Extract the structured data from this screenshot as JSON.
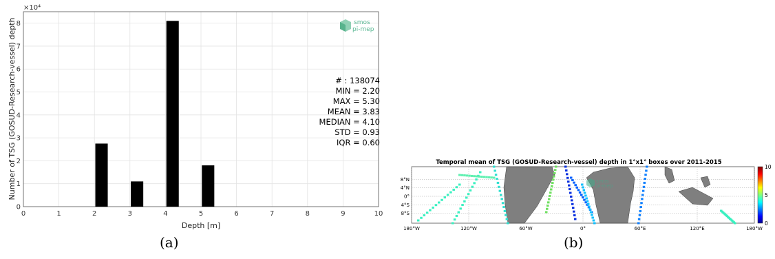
{
  "panel_a": {
    "logo": {
      "line1": "smos",
      "line2": "pi-mep",
      "color": "#3fae8a"
    },
    "stats": [
      "# : 138074",
      "MIN = 2.20",
      "MAX =  5.30",
      "MEAN = 3.83",
      "MEDIAN = 4.10",
      "STD = 0.93",
      "IQR = 0.60"
    ],
    "caption": "(a)"
  },
  "panel_b": {
    "caption": "(b)",
    "logo": {
      "line1": "smos",
      "line2": "pi-mep"
    }
  },
  "chart_data": [
    {
      "type": "bar",
      "xlabel": "Depth [m]",
      "ylabel": "Number of TSG (GOSUD-Research-vessel) depth",
      "y_multiplier_label": "×10⁴",
      "xlim": [
        0,
        10
      ],
      "ylim": [
        0,
        85000
      ],
      "x_ticks": [
        0,
        1,
        2,
        3,
        4,
        5,
        6,
        7,
        8,
        9,
        10
      ],
      "y_ticks": [
        0,
        10000,
        20000,
        30000,
        40000,
        50000,
        60000,
        70000,
        80000
      ],
      "y_tick_labels": [
        "0",
        "1",
        "2",
        "3",
        "4",
        "5",
        "6",
        "7",
        "8"
      ],
      "bar_width": 0.35,
      "bars": [
        {
          "x": 2.2,
          "value": 27500
        },
        {
          "x": 3.2,
          "value": 11000
        },
        {
          "x": 4.2,
          "value": 81000
        },
        {
          "x": 5.2,
          "value": 18000
        }
      ],
      "bar_color": "#000000",
      "grid": true
    },
    {
      "type": "heatmap",
      "title": "Temporal mean of TSG (GOSUD-Research-vessel) depth in 1°x1° boxes over 2011-2015",
      "x_tick_labels": [
        "180°W",
        "120°W",
        "60°W",
        "0°",
        "60°E",
        "120°E",
        "180°W"
      ],
      "y_tick_labels": [
        "8°N",
        "4°N",
        "0°",
        "4°S",
        "8°S"
      ],
      "colorbar": {
        "min": 0,
        "max": 10,
        "ticks": [
          "0",
          "5",
          "10"
        ],
        "colormap": "jet"
      }
    }
  ]
}
